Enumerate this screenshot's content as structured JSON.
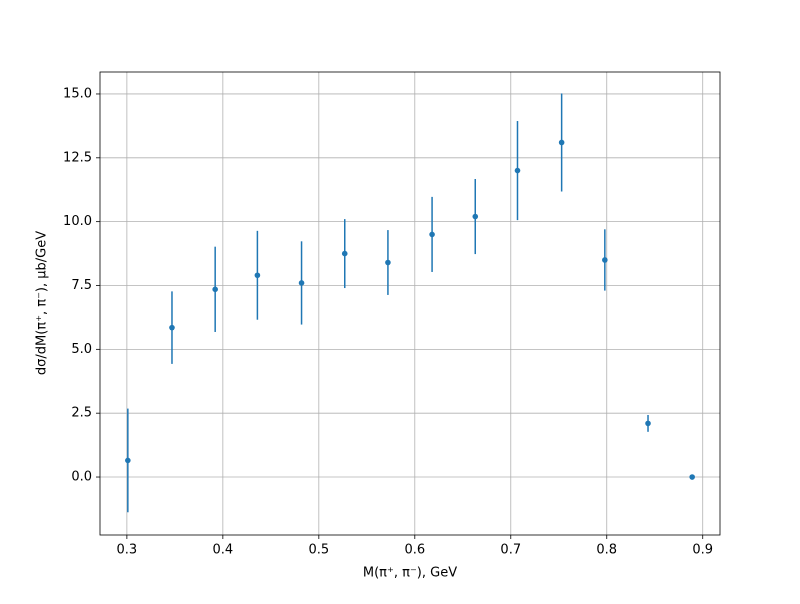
{
  "chart_data": {
    "type": "errorbar",
    "x_label": "M(π⁺, π⁻), GeV",
    "y_label": "dσ/dM(π⁺, π⁻), μb/GeV",
    "x": [
      0.301,
      0.347,
      0.392,
      0.436,
      0.482,
      0.527,
      0.572,
      0.618,
      0.663,
      0.707,
      0.753,
      0.798,
      0.843,
      0.889
    ],
    "values": [
      0.65,
      5.85,
      7.35,
      7.9,
      7.6,
      8.75,
      8.4,
      9.5,
      10.2,
      12.0,
      13.1,
      8.5,
      2.1,
      0.0
    ],
    "errors": [
      2.03,
      1.42,
      1.67,
      1.74,
      1.63,
      1.35,
      1.27,
      1.47,
      1.47,
      1.94,
      1.92,
      1.2,
      0.33,
      0.0
    ],
    "color": "#1f77b4",
    "xlim": [
      0.272,
      0.918
    ],
    "ylim": [
      -2.27,
      15.86
    ],
    "xticks": [
      0.3,
      0.4,
      0.5,
      0.6,
      0.7,
      0.8,
      0.9
    ],
    "yticks": [
      {
        "value": 0,
        "label": "0.0"
      },
      2.5,
      {
        "value": 5,
        "label": "5.0"
      },
      7.5,
      {
        "value": 10,
        "label": "10.0"
      },
      12.5,
      {
        "value": 15,
        "label": "15.0"
      }
    ],
    "grid": true
  }
}
